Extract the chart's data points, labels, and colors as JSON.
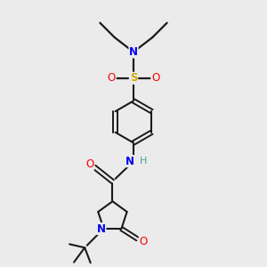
{
  "background_color": "#ebebeb",
  "atom_colors": {
    "C": "#1a1a1a",
    "N": "#0000ee",
    "O": "#ff0000",
    "S": "#ccaa00",
    "H": "#559999"
  },
  "figsize": [
    3.0,
    3.0
  ],
  "dpi": 100
}
